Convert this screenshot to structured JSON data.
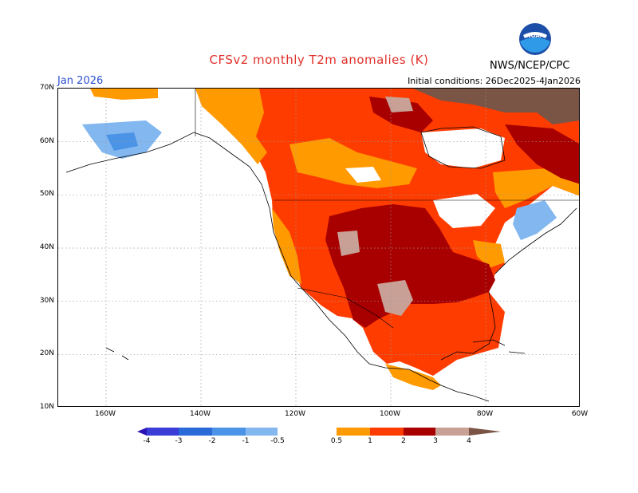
{
  "header": {
    "title": "CFSv2 monthly T2m anomalies (K)",
    "month": "Jan 2026",
    "initial_conditions": "Initial conditions: 26Dec2025-4Jan2026",
    "agency": "NWS/NCEP/CPC",
    "logo_text": "NOAA"
  },
  "axes": {
    "lat_labels": [
      "70N",
      "60N",
      "50N",
      "40N",
      "30N",
      "20N",
      "10N"
    ],
    "lon_labels": [
      "160W",
      "140W",
      "120W",
      "100W",
      "80W",
      "60W"
    ]
  },
  "colorbar": {
    "labels": [
      "-4",
      "-3",
      "-2",
      "-1",
      "-0.5",
      "0.5",
      "1",
      "2",
      "3",
      "4"
    ],
    "colors": {
      "lt_m4": "#2a14b4",
      "m4_m3": "#3c3cd6",
      "m3_m2": "#2a6ad8",
      "m2_m1": "#4b93e6",
      "m1_m05": "#82b7f0",
      "m05_05": "#ffffff",
      "p05_1": "#ff9a00",
      "p1_2": "#ff3c00",
      "p2_3": "#a80000",
      "p3_4": "#c8a096",
      "gt4": "#7a5444"
    }
  }
}
